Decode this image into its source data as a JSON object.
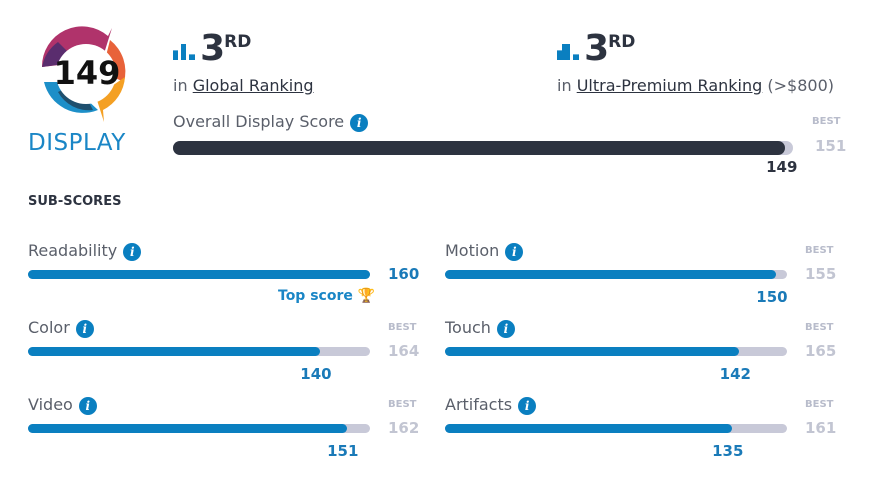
{
  "badge": {
    "score": "149",
    "category": "DISPLAY",
    "colors": {
      "magenta": "#b0336b",
      "orange": "#e8623a",
      "yellow": "#f4a024",
      "blue": "#1d8fc8",
      "navy": "#1e4f6e",
      "purple": "#5a2d6e"
    }
  },
  "global_rank": {
    "number": "3",
    "suffix": "RD",
    "prefix": "in",
    "link": "Global Ranking"
  },
  "premium_rank": {
    "number": "3",
    "suffix": "RD",
    "prefix": "in",
    "link": "Ultra-Premium Ranking",
    "note": "(>$800)"
  },
  "overall": {
    "label": "Overall Display Score",
    "value": 149,
    "value_text": "149",
    "best_label": "BEST",
    "best": 151,
    "best_text": "151",
    "color": "#2d3340"
  },
  "subscores_title": "SUB-SCORES",
  "subscores": [
    {
      "label": "Readability",
      "value": 160,
      "value_text": "160",
      "best": 160,
      "top_score": "Top score"
    },
    {
      "label": "Motion",
      "value": 150,
      "value_text": "150",
      "best": 155,
      "best_label": "BEST",
      "best_text": "155"
    },
    {
      "label": "Color",
      "value": 140,
      "value_text": "140",
      "best": 164,
      "best_label": "BEST",
      "best_text": "164"
    },
    {
      "label": "Touch",
      "value": 142,
      "value_text": "142",
      "best": 165,
      "best_label": "BEST",
      "best_text": "165"
    },
    {
      "label": "Video",
      "value": 151,
      "value_text": "151",
      "best": 162,
      "best_label": "BEST",
      "best_text": "162"
    },
    {
      "label": "Artifacts",
      "value": 135,
      "value_text": "135",
      "best": 161,
      "best_label": "BEST",
      "best_text": "161"
    }
  ],
  "accent": "#0a7fc0"
}
